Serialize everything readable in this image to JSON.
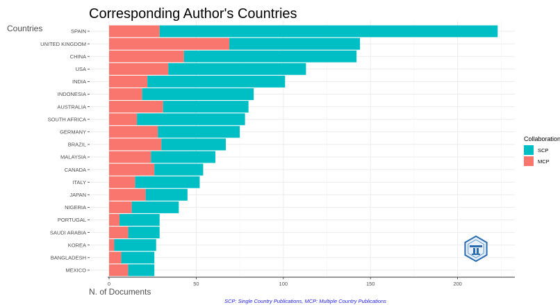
{
  "chart_data": {
    "type": "bar",
    "orientation": "horizontal",
    "stacked": true,
    "title": "Corresponding Author's Countries",
    "xlabel": "N. of Documents",
    "ylabel": "Countries",
    "xlim": [
      0,
      235
    ],
    "xticks": [
      0,
      50,
      100,
      150,
      200
    ],
    "grid": true,
    "categories": [
      "SPAIN",
      "UNITED KINGDOM",
      "CHINA",
      "USA",
      "INDIA",
      "INDONESIA",
      "AUSTRALIA",
      "SOUTH AFRICA",
      "GERMANY",
      "BRAZIL",
      "MALAYSIA",
      "CANADA",
      "ITALY",
      "JAPAN",
      "NIGERIA",
      "PORTUGAL",
      "SAUDI ARABIA",
      "KOREA",
      "BANGLADESH",
      "MEXICO"
    ],
    "series": [
      {
        "name": "MCP",
        "color": "#F8766D",
        "values": [
          29,
          69,
          43,
          34,
          22,
          19,
          31,
          16,
          28,
          30,
          24,
          26,
          15,
          21,
          13,
          6,
          11,
          3,
          7,
          11
        ]
      },
      {
        "name": "SCP",
        "color": "#00BFC4",
        "values": [
          194,
          75,
          99,
          79,
          79,
          64,
          49,
          62,
          47,
          37,
          37,
          28,
          37,
          24,
          27,
          23,
          18,
          24,
          19,
          15
        ]
      }
    ],
    "legend": {
      "title": "Collaboration",
      "position": "right",
      "order": [
        "SCP",
        "MCP"
      ]
    },
    "caption": "SCP: Single Country Publications, MCP: Multiple Country Publications"
  },
  "logo": {
    "name": "bibliometrix-logo",
    "color": "#2b6cb0"
  }
}
